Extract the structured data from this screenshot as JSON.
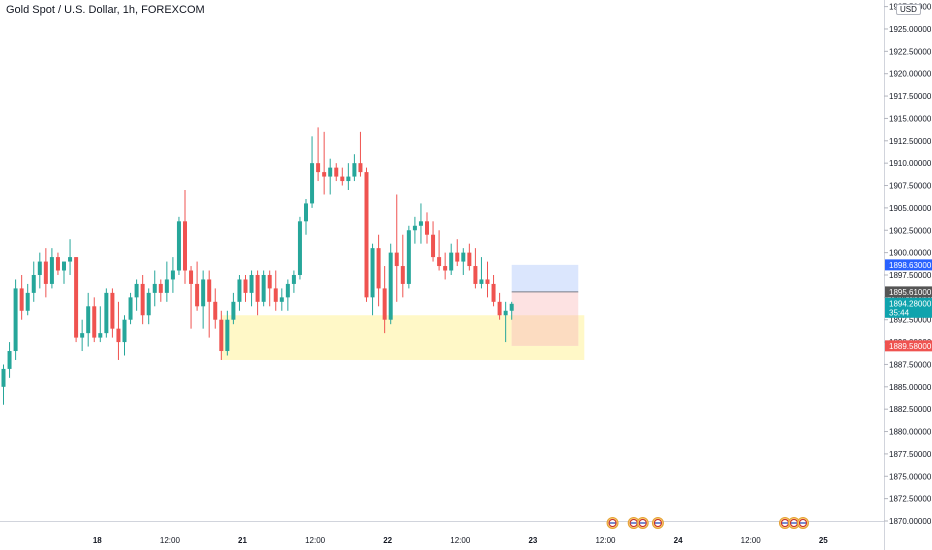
{
  "header": {
    "title": "Gold Spot / U.S. Dollar, 1h, FOREXCOM",
    "currency_badge": "USD"
  },
  "colors": {
    "up": "#26a69a",
    "down": "#ef5350",
    "zone": "#fff8c7",
    "target": "#dbe6fd",
    "stop": "#fde2e2",
    "stop_overlap": "#fcdcc1",
    "blue_tag": "#2962ff",
    "dark_tag": "#555555",
    "teal_tag": "#0fa3ad",
    "red_tag": "#ef5350"
  },
  "chart_data": {
    "type": "candlestick",
    "symbol": "Gold Spot / U.S. Dollar",
    "interval": "1h",
    "exchange": "FOREXCOM",
    "y_axis": {
      "ticks": [
        1870,
        1872.5,
        1875,
        1877.5,
        1880,
        1882.5,
        1885,
        1887.5,
        1890,
        1892.5,
        1895,
        1897.5,
        1900,
        1902.5,
        1905,
        1907.5,
        1910,
        1912.5,
        1915,
        1917.5,
        1920,
        1922.5,
        1925,
        1927.5
      ],
      "tick_labels": [
        "1870.00000",
        "1872.50000",
        "1875.00000",
        "1877.50000",
        "1880.00000",
        "1882.50000",
        "1885.00000",
        "1887.50000",
        "1890.00000",
        "1892.50000",
        "1895.00000",
        "1897.50000",
        "1900.00000",
        "1902.50000",
        "1905.00000",
        "1907.50000",
        "1910.00000",
        "1912.50000",
        "1915.00000",
        "1917.50000",
        "1920.00000",
        "1922.50000",
        "1925.00000",
        "1927.50000"
      ],
      "top_partial_label": "19"
    },
    "x_axis": {
      "labels": [
        {
          "text": "18",
          "bar": 16
        },
        {
          "text": "12:00",
          "bar": 28
        },
        {
          "text": "21",
          "bar": 40
        },
        {
          "text": "12:00",
          "bar": 52
        },
        {
          "text": "22",
          "bar": 64
        },
        {
          "text": "12:00",
          "bar": 76
        },
        {
          "text": "23",
          "bar": 88
        },
        {
          "text": "12:00",
          "bar": 100
        },
        {
          "text": "24",
          "bar": 112
        },
        {
          "text": "12:00",
          "bar": 124
        },
        {
          "text": "25",
          "bar": 136
        }
      ]
    },
    "candles": [
      [
        1885.0,
        1887.5,
        1883.0,
        1887.0
      ],
      [
        1887.0,
        1890.0,
        1886.0,
        1889.0
      ],
      [
        1889.0,
        1897.0,
        1888.0,
        1896.0
      ],
      [
        1896.0,
        1897.5,
        1892.5,
        1893.5
      ],
      [
        1893.5,
        1896.5,
        1893.0,
        1895.5
      ],
      [
        1895.5,
        1899.0,
        1894.5,
        1897.5
      ],
      [
        1897.5,
        1900.0,
        1896.0,
        1899.0
      ],
      [
        1899.0,
        1900.5,
        1895.0,
        1896.5
      ],
      [
        1896.5,
        1900.5,
        1896.0,
        1899.5
      ],
      [
        1899.5,
        1900.0,
        1897.5,
        1898.0
      ],
      [
        1898.0,
        1899.0,
        1896.5,
        1899.0
      ],
      [
        1899.0,
        1901.5,
        1897.5,
        1899.5
      ],
      [
        1899.5,
        1899.5,
        1890.0,
        1890.5
      ],
      [
        1890.5,
        1892.5,
        1889.0,
        1891.0
      ],
      [
        1891.0,
        1895.5,
        1889.5,
        1894.0
      ],
      [
        1894.0,
        1895.0,
        1890.0,
        1890.5
      ],
      [
        1890.5,
        1894.0,
        1890.0,
        1891.0
      ],
      [
        1891.0,
        1896.0,
        1890.5,
        1895.5
      ],
      [
        1895.5,
        1896.0,
        1890.5,
        1891.5
      ],
      [
        1891.5,
        1894.5,
        1888.0,
        1890.0
      ],
      [
        1890.0,
        1893.0,
        1888.5,
        1892.5
      ],
      [
        1892.5,
        1895.5,
        1892.0,
        1895.0
      ],
      [
        1895.0,
        1897.0,
        1893.5,
        1896.5
      ],
      [
        1896.5,
        1897.5,
        1892.0,
        1893.0
      ],
      [
        1893.0,
        1896.0,
        1892.0,
        1895.5
      ],
      [
        1895.5,
        1898.0,
        1894.0,
        1896.5
      ],
      [
        1896.5,
        1897.0,
        1894.5,
        1895.5
      ],
      [
        1895.5,
        1899.0,
        1894.5,
        1897.0
      ],
      [
        1897.0,
        1899.5,
        1895.5,
        1898.0
      ],
      [
        1898.0,
        1904.0,
        1897.5,
        1903.5
      ],
      [
        1903.5,
        1907.0,
        1896.5,
        1898.0
      ],
      [
        1898.0,
        1898.5,
        1891.5,
        1896.5
      ],
      [
        1896.5,
        1899.0,
        1893.5,
        1894.0
      ],
      [
        1894.0,
        1898.0,
        1891.5,
        1897.0
      ],
      [
        1897.0,
        1898.0,
        1890.5,
        1894.5
      ],
      [
        1894.5,
        1896.0,
        1891.5,
        1892.5
      ],
      [
        1892.5,
        1893.5,
        1888.0,
        1889.0
      ],
      [
        1889.0,
        1893.5,
        1888.5,
        1892.5
      ],
      [
        1892.5,
        1895.5,
        1892.0,
        1894.5
      ],
      [
        1894.5,
        1897.5,
        1893.5,
        1897.0
      ],
      [
        1897.0,
        1897.5,
        1894.5,
        1895.5
      ],
      [
        1895.5,
        1898.0,
        1894.0,
        1897.5
      ],
      [
        1897.5,
        1898.0,
        1893.0,
        1894.5
      ],
      [
        1894.5,
        1898.0,
        1894.0,
        1897.5
      ],
      [
        1897.5,
        1898.0,
        1894.0,
        1896.0
      ],
      [
        1896.0,
        1898.0,
        1893.5,
        1894.5
      ],
      [
        1894.5,
        1896.0,
        1893.5,
        1895.0
      ],
      [
        1895.0,
        1897.0,
        1893.5,
        1896.5
      ],
      [
        1896.5,
        1898.0,
        1895.5,
        1897.5
      ],
      [
        1897.5,
        1904.0,
        1897.0,
        1903.5
      ],
      [
        1903.5,
        1906.0,
        1902.0,
        1905.5
      ],
      [
        1905.5,
        1913.0,
        1905.0,
        1910.0
      ],
      [
        1910.0,
        1914.0,
        1908.0,
        1909.0
      ],
      [
        1909.0,
        1913.5,
        1906.5,
        1908.5
      ],
      [
        1908.5,
        1910.5,
        1906.5,
        1909.5
      ],
      [
        1909.5,
        1910.0,
        1908.0,
        1908.5
      ],
      [
        1908.5,
        1909.5,
        1907.5,
        1908.0
      ],
      [
        1908.0,
        1910.0,
        1907.0,
        1908.5
      ],
      [
        1908.5,
        1911.0,
        1908.0,
        1910.0
      ],
      [
        1910.0,
        1913.5,
        1908.5,
        1909.0
      ],
      [
        1909.0,
        1909.5,
        1894.5,
        1895.0
      ],
      [
        1895.0,
        1901.0,
        1893.0,
        1900.5
      ],
      [
        1900.5,
        1902.0,
        1894.0,
        1896.0
      ],
      [
        1896.0,
        1898.5,
        1891.0,
        1892.5
      ],
      [
        1892.5,
        1901.0,
        1892.0,
        1900.0
      ],
      [
        1900.0,
        1906.5,
        1894.5,
        1898.5
      ],
      [
        1898.5,
        1902.0,
        1895.0,
        1896.5
      ],
      [
        1896.5,
        1903.0,
        1896.0,
        1902.5
      ],
      [
        1902.5,
        1904.0,
        1901.0,
        1903.0
      ],
      [
        1903.0,
        1905.5,
        1901.0,
        1903.5
      ],
      [
        1903.5,
        1904.5,
        1901.0,
        1902.0
      ],
      [
        1902.0,
        1903.5,
        1899.0,
        1899.5
      ],
      [
        1899.5,
        1902.5,
        1898.0,
        1898.5
      ],
      [
        1898.5,
        1900.0,
        1897.0,
        1898.0
      ],
      [
        1898.0,
        1901.0,
        1897.5,
        1900.0
      ],
      [
        1900.0,
        1901.5,
        1898.5,
        1899.0
      ],
      [
        1899.0,
        1900.5,
        1897.5,
        1900.0
      ],
      [
        1900.0,
        1901.0,
        1898.0,
        1898.5
      ],
      [
        1898.5,
        1900.5,
        1896.0,
        1896.5
      ],
      [
        1896.5,
        1899.5,
        1896.0,
        1897.0
      ],
      [
        1897.0,
        1899.0,
        1895.0,
        1896.5
      ],
      [
        1896.5,
        1897.5,
        1894.0,
        1894.5
      ],
      [
        1894.5,
        1895.5,
        1892.5,
        1893.0
      ],
      [
        1893.0,
        1894.5,
        1890.0,
        1893.5
      ],
      [
        1893.5,
        1894.5,
        1892.5,
        1894.28
      ]
    ],
    "highlight_zone": {
      "from_bar": 36,
      "to_bar": 96,
      "y_low": 1888.0,
      "y_high": 1893.0
    },
    "position_tool": {
      "from_bar": 84,
      "to_bar": 95,
      "entry": 1895.61,
      "target": 1898.63,
      "stop": 1889.58
    },
    "price_tags": [
      {
        "value": 1898.63,
        "text": "1898.63000",
        "style": "blue"
      },
      {
        "value": 1895.61,
        "text": "1895.61000",
        "style": "dark"
      },
      {
        "value": 1894.28,
        "text": "1894.28000",
        "sub": "35:44",
        "style": "teal"
      },
      {
        "value": 1889.58,
        "text": "1889.58000",
        "style": "red"
      }
    ],
    "event_flags": [
      {
        "bar": 101,
        "count": 1,
        "country": "us"
      },
      {
        "bar": 104.5,
        "count": 2,
        "country": "us"
      },
      {
        "bar": 108.5,
        "count": 1,
        "country": "us"
      },
      {
        "bar": 129.5,
        "count": 3,
        "country": "us"
      }
    ]
  }
}
